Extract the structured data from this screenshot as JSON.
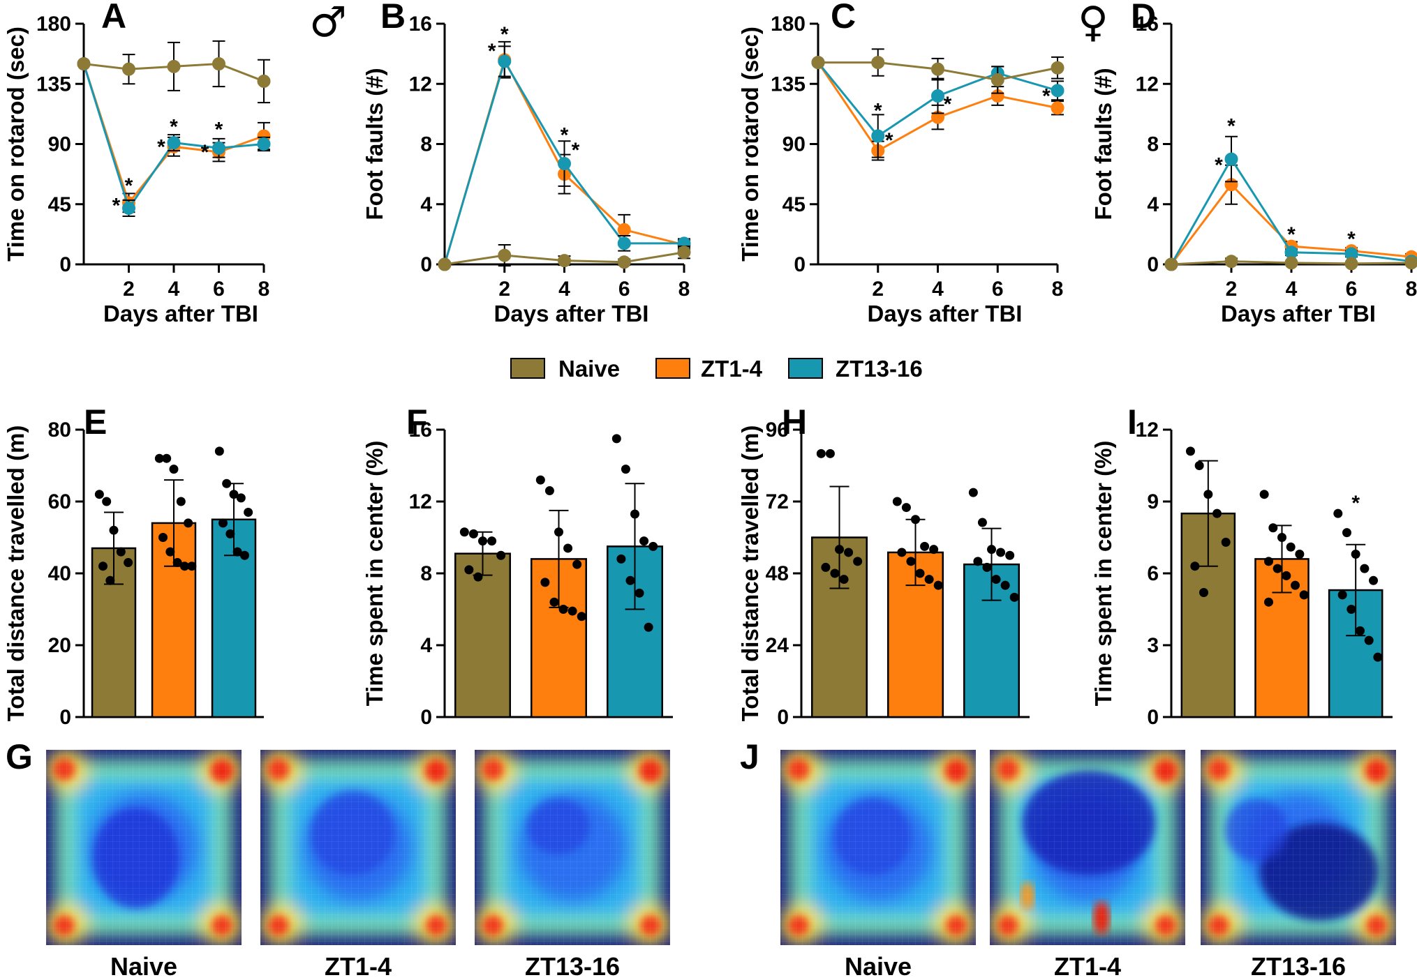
{
  "colors": {
    "naive": "#8C7A36",
    "zt14": "#FF7F0E",
    "zt1316": "#1797B0"
  },
  "legend": [
    "Naive",
    "ZT1-4",
    "ZT13-16"
  ],
  "sex_symbols": {
    "male": "♂",
    "female": "♀"
  },
  "heatmap_panels": [
    {
      "label": "G",
      "names": [
        "Naive",
        "ZT1-4",
        "ZT13-16"
      ]
    },
    {
      "label": "J",
      "names": [
        "Naive",
        "ZT1-4",
        "ZT13-16"
      ]
    }
  ],
  "chart_data": [
    {
      "panel": "A",
      "type": "line",
      "xlabel": "Days after TBI",
      "ylabel": "Time on rotarod (sec)",
      "x": [
        0,
        2,
        4,
        6,
        8
      ],
      "xticks": [
        2,
        4,
        6,
        8
      ],
      "ylim": [
        0,
        180
      ],
      "yticks": [
        0,
        45,
        90,
        135,
        180
      ],
      "series": [
        {
          "name": "Naive",
          "values": [
            150,
            146,
            148,
            150,
            137
          ],
          "errors": [
            0,
            11,
            18,
            17,
            16
          ]
        },
        {
          "name": "ZT1-4",
          "values": [
            150,
            46,
            88,
            84,
            96
          ],
          "errors": [
            0,
            7,
            7,
            7,
            10
          ]
        },
        {
          "name": "ZT13-16",
          "values": [
            150,
            42,
            91,
            87,
            90
          ],
          "errors": [
            0,
            6,
            6,
            7,
            5
          ]
        }
      ],
      "annotations": [
        {
          "text": "*",
          "x": 2,
          "y": 59,
          "dx": 0
        },
        {
          "text": "*",
          "x": 2,
          "y": 44,
          "dx": -18
        },
        {
          "text": "*",
          "x": 4,
          "y": 103,
          "dx": 0
        },
        {
          "text": "*",
          "x": 4,
          "y": 88,
          "dx": -18
        },
        {
          "text": "*",
          "x": 6,
          "y": 101,
          "dx": 0
        },
        {
          "text": "*",
          "x": 6,
          "y": 84,
          "dx": -20
        }
      ]
    },
    {
      "panel": "B",
      "type": "line",
      "xlabel": "Days after TBI",
      "ylabel": "Foot faults (#)",
      "x": [
        0,
        2,
        4,
        6,
        8
      ],
      "xticks": [
        2,
        4,
        6,
        8
      ],
      "ylim": [
        0,
        16
      ],
      "yticks": [
        0,
        4,
        8,
        12,
        16
      ],
      "series": [
        {
          "name": "Naive",
          "values": [
            0,
            0.6,
            0.25,
            0.15,
            0.8
          ],
          "errors": [
            0,
            0.7,
            0.3,
            0.2,
            0.4
          ]
        },
        {
          "name": "ZT1-4",
          "values": [
            0,
            13.6,
            6.0,
            2.3,
            1.3
          ],
          "errors": [
            0,
            1.2,
            1.3,
            1.0,
            0.3
          ]
        },
        {
          "name": "ZT13-16",
          "values": [
            0,
            13.5,
            6.7,
            1.4,
            1.4
          ],
          "errors": [
            0,
            1.0,
            1.5,
            0.5,
            0.3
          ]
        }
      ],
      "annotations": [
        {
          "text": "*",
          "x": 2,
          "y": 15.3,
          "dx": 0
        },
        {
          "text": "*",
          "x": 2,
          "y": 14.2,
          "dx": -18
        },
        {
          "text": "*",
          "x": 4,
          "y": 8.6,
          "dx": 0
        },
        {
          "text": "*",
          "x": 4,
          "y": 7.6,
          "dx": 16
        }
      ]
    },
    {
      "panel": "C",
      "type": "line",
      "xlabel": "Days after TBI",
      "ylabel": "Time on rotarod (sec)",
      "x": [
        0,
        2,
        4,
        6,
        8
      ],
      "xticks": [
        2,
        4,
        6,
        8
      ],
      "ylim": [
        0,
        180
      ],
      "yticks": [
        0,
        45,
        90,
        135,
        180
      ],
      "series": [
        {
          "name": "Naive",
          "values": [
            151,
            151,
            146,
            138,
            147
          ],
          "errors": [
            0,
            10,
            8,
            10,
            8
          ]
        },
        {
          "name": "ZT1-4",
          "values": [
            151,
            85,
            110,
            126,
            117
          ],
          "errors": [
            0,
            7,
            9,
            7,
            5
          ]
        },
        {
          "name": "ZT13-16",
          "values": [
            151,
            96,
            126,
            143,
            130
          ],
          "errors": [
            0,
            16,
            13,
            5,
            7
          ]
        }
      ],
      "annotations": [
        {
          "text": "*",
          "x": 2,
          "y": 115,
          "dx": 0
        },
        {
          "text": "*",
          "x": 2,
          "y": 93,
          "dx": 16
        },
        {
          "text": "*",
          "x": 4,
          "y": 120,
          "dx": 14
        },
        {
          "text": "*",
          "x": 8,
          "y": 126,
          "dx": -16
        }
      ]
    },
    {
      "panel": "D",
      "type": "line",
      "xlabel": "Days after TBI",
      "ylabel": "Foot faults (#)",
      "x": [
        0,
        2,
        4,
        6,
        8
      ],
      "xticks": [
        2,
        4,
        6,
        8
      ],
      "ylim": [
        0,
        16
      ],
      "yticks": [
        0,
        4,
        8,
        12,
        16
      ],
      "series": [
        {
          "name": "Naive",
          "values": [
            0,
            0.2,
            0.1,
            0.05,
            0.1
          ],
          "errors": [
            0,
            0.2,
            0.1,
            0.1,
            0.1
          ]
        },
        {
          "name": "ZT1-4",
          "values": [
            0,
            5.3,
            1.2,
            0.9,
            0.5
          ],
          "errors": [
            0,
            1.3,
            0.3,
            0.2,
            0.2
          ]
        },
        {
          "name": "ZT13-16",
          "values": [
            0,
            7.0,
            0.8,
            0.7,
            0.2
          ],
          "errors": [
            0,
            1.5,
            0.2,
            0.2,
            0.1
          ]
        }
      ],
      "annotations": [
        {
          "text": "*",
          "x": 2,
          "y": 9.2,
          "dx": 0
        },
        {
          "text": "*",
          "x": 2,
          "y": 6.6,
          "dx": -18
        },
        {
          "text": "*",
          "x": 4,
          "y": 2.0,
          "dx": 0
        },
        {
          "text": "*",
          "x": 6,
          "y": 1.7,
          "dx": 0
        }
      ]
    },
    {
      "panel": "E",
      "type": "bar",
      "ylabel": "Total distance travelled (m)",
      "categories": [
        "Naive",
        "ZT1-4",
        "ZT13-16"
      ],
      "ylim": [
        0,
        80
      ],
      "yticks": [
        0,
        20,
        40,
        60,
        80
      ],
      "values": [
        47,
        54,
        55
      ],
      "errors": [
        10,
        12,
        10
      ],
      "points": [
        [
          62,
          60,
          52,
          46,
          43,
          42,
          38
        ],
        [
          72,
          72,
          69,
          60,
          54,
          50,
          46,
          43,
          42,
          42
        ],
        [
          74,
          65,
          62,
          61,
          57,
          54,
          51,
          46,
          45
        ]
      ],
      "annotations": []
    },
    {
      "panel": "F",
      "type": "bar",
      "ylabel": "Time spent in center (%)",
      "categories": [
        "Naive",
        "ZT1-4",
        "ZT13-16"
      ],
      "ylim": [
        0,
        16
      ],
      "yticks": [
        0,
        4,
        8,
        12,
        16
      ],
      "values": [
        9.1,
        8.8,
        9.5
      ],
      "errors": [
        1.2,
        2.7,
        3.5
      ],
      "points": [
        [
          10.3,
          10.2,
          9.8,
          9.8,
          9.0,
          8.2,
          7.8
        ],
        [
          13.2,
          12.6,
          10.3,
          9.4,
          8.5,
          7.5,
          6.4,
          6.0,
          5.9,
          5.6
        ],
        [
          15.5,
          13.8,
          11.3,
          9.8,
          9.5,
          8.8,
          7.6,
          6.9,
          5.0
        ]
      ],
      "annotations": []
    },
    {
      "panel": "H",
      "type": "bar",
      "ylabel": "Total distance travelled (m)",
      "categories": [
        "Naive",
        "ZT1-4",
        "ZT13-16"
      ],
      "ylim": [
        0,
        96
      ],
      "yticks": [
        0,
        24,
        48,
        72,
        96
      ],
      "values": [
        60,
        55,
        51
      ],
      "errors": [
        17,
        11,
        12
      ],
      "points": [
        [
          88,
          88,
          56,
          55,
          52,
          50,
          48,
          46
        ],
        [
          72,
          70,
          66,
          57,
          56,
          55,
          52,
          48,
          46,
          44
        ],
        [
          75,
          65,
          56,
          55,
          54,
          52,
          50,
          46,
          44,
          40
        ]
      ],
      "annotations": []
    },
    {
      "panel": "I",
      "type": "bar",
      "ylabel": "Time spent in center (%)",
      "categories": [
        "Naive",
        "ZT1-4",
        "ZT13-16"
      ],
      "ylim": [
        0,
        12
      ],
      "yticks": [
        0,
        3,
        6,
        9,
        12
      ],
      "values": [
        8.5,
        6.6,
        5.3
      ],
      "errors": [
        2.2,
        1.4,
        1.9
      ],
      "points": [
        [
          11.1,
          10.5,
          9.3,
          8.5,
          7.3,
          6.3,
          5.2
        ],
        [
          9.3,
          7.9,
          7.5,
          7.1,
          6.8,
          6.5,
          6.2,
          5.9,
          5.5,
          5.1,
          4.8
        ],
        [
          8.5,
          7.7,
          6.8,
          6.2,
          5.7,
          5.1,
          4.5,
          3.6,
          3.2,
          2.5
        ]
      ],
      "annotations": [
        {
          "text": "*",
          "category": 2,
          "y": 9.0
        }
      ]
    }
  ]
}
